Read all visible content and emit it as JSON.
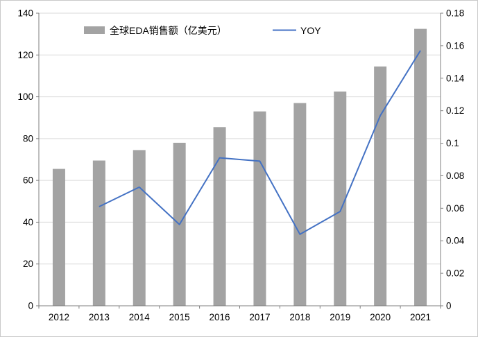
{
  "chart_data": {
    "type": "bar",
    "combo": "bar+line",
    "title": "",
    "categories": [
      "2012",
      "2013",
      "2014",
      "2015",
      "2016",
      "2017",
      "2018",
      "2019",
      "2020",
      "2021"
    ],
    "series": [
      {
        "name": "全球EDA销售额（亿美元）",
        "type": "bar",
        "axis": "left",
        "color": "#a3a3a3",
        "values": [
          65.5,
          69.5,
          74.5,
          78,
          85.5,
          93,
          97,
          102.5,
          114.5,
          132.5
        ]
      },
      {
        "name": "YOY",
        "type": "line",
        "axis": "right",
        "color": "#4472c4",
        "values": [
          null,
          0.061,
          0.073,
          0.05,
          0.091,
          0.089,
          0.044,
          0.058,
          0.117,
          0.157
        ]
      }
    ],
    "left_axis": {
      "min": 0,
      "max": 140,
      "step": 20,
      "labels": [
        "0",
        "20",
        "40",
        "60",
        "80",
        "100",
        "120",
        "140"
      ]
    },
    "right_axis": {
      "min": 0,
      "max": 0.18,
      "step": 0.02,
      "labels": [
        "0",
        "0.02",
        "0.04",
        "0.06",
        "0.08",
        "0.1",
        "0.12",
        "0.14",
        "0.16",
        "0.18"
      ]
    },
    "grid": true,
    "gridline_color": "#d9d9d9",
    "axis_color": "#7f7f7f",
    "legend_position": "top"
  }
}
